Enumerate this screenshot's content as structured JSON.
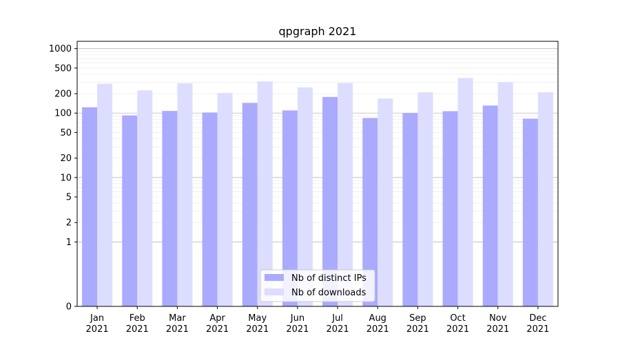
{
  "chart_data": {
    "type": "bar",
    "title": "qpgraph 2021",
    "xlabel": "",
    "ylabel": "",
    "categories": [
      "Jan\n2021",
      "Feb\n2021",
      "Mar\n2021",
      "Apr\n2021",
      "May\n2021",
      "Jun\n2021",
      "Jul\n2021",
      "Aug\n2021",
      "Sep\n2021",
      "Oct\n2021",
      "Nov\n2021",
      "Dec\n2021"
    ],
    "series": [
      {
        "name": "Nb of distinct IPs",
        "color": "#aaaaff",
        "values": [
          123,
          92,
          108,
          102,
          144,
          110,
          178,
          84,
          100,
          107,
          131,
          82
        ]
      },
      {
        "name": "Nb of downloads",
        "color": "#ddddff",
        "values": [
          285,
          225,
          290,
          205,
          310,
          250,
          292,
          168,
          210,
          350,
          302,
          210
        ]
      }
    ],
    "y_scale": "symlog",
    "ylim": [
      0,
      1300
    ],
    "y_ticks": [
      0,
      1,
      2,
      5,
      10,
      20,
      50,
      100,
      200,
      500,
      1000
    ],
    "y_tick_labels": [
      "0",
      "1",
      "2",
      "5",
      "10",
      "20",
      "50",
      "100",
      "200",
      "500",
      "1000"
    ],
    "grid": true,
    "legend_position": "bottom-center"
  }
}
